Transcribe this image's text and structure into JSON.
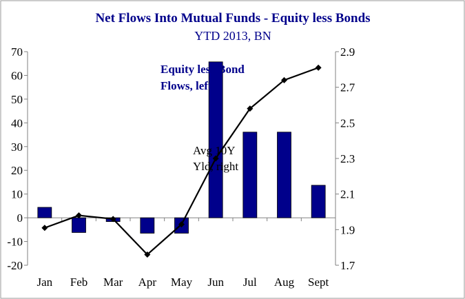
{
  "chart_data": {
    "type": "bar+line",
    "title": "Net Flows Into Mutual Funds - Equity less Bonds",
    "subtitle": "YTD 2013, BN",
    "categories": [
      "Jan",
      "Feb",
      "Mar",
      "Apr",
      "May",
      "Jun",
      "Jul",
      "Aug",
      "Sept"
    ],
    "series": [
      {
        "name": "Equity less Bond Flows, left",
        "type": "bar",
        "axis": "left",
        "values": [
          4.4,
          -6.2,
          -1.6,
          -6.5,
          -6.5,
          65.7,
          36.1,
          36.1,
          13.7
        ],
        "color": "#00008b"
      },
      {
        "name": "Avg 10Y Yld, right",
        "type": "line",
        "axis": "right",
        "values": [
          1.91,
          1.98,
          1.96,
          1.76,
          1.93,
          2.3,
          2.58,
          2.74,
          2.81
        ],
        "color": "#000000"
      }
    ],
    "annotations": {
      "bar_label": [
        "Equity less Bond",
        "Flows, left"
      ],
      "line_label": [
        "Avg 10Y",
        "Yld, right"
      ]
    },
    "y_left": {
      "lim": [
        -20,
        70
      ],
      "ticks": [
        "70",
        "60",
        "50",
        "40",
        "30",
        "20",
        "10",
        "0",
        "-10",
        "-20"
      ]
    },
    "y_right": {
      "lim": [
        1.7,
        2.9
      ],
      "ticks": [
        "2.9",
        "2.7",
        "2.5",
        "2.3",
        "2.1",
        "1.9",
        "1.7"
      ]
    },
    "grid": false,
    "legend": "none"
  }
}
